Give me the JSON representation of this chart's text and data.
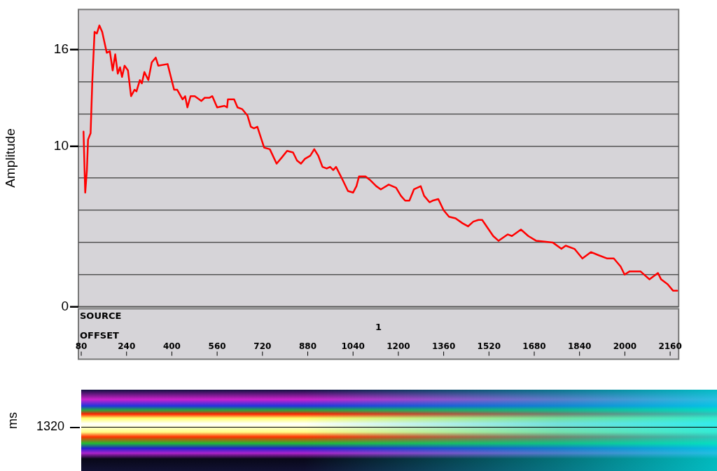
{
  "chart_data": {
    "type": "line",
    "ylabel": "Amplitude",
    "xlabel": "OFFSET",
    "annotations": [
      "SOURCE",
      "1",
      "ms",
      "1320"
    ],
    "xlim": [
      70,
      2190
    ],
    "xticks": [
      80,
      240,
      400,
      560,
      720,
      880,
      1040,
      1200,
      1360,
      1520,
      1680,
      1840,
      2000,
      2160
    ],
    "ylim": [
      0,
      18.5
    ],
    "yticks": [
      0,
      {
        "value": 2,
        "label": null
      },
      {
        "value": 4,
        "label": null
      },
      {
        "value": 6,
        "label": null
      },
      {
        "value": 8,
        "label": null
      },
      10,
      {
        "value": 12,
        "label": null
      },
      {
        "value": 14,
        "label": null
      },
      16
    ],
    "grid": "y",
    "legend": false,
    "marker": "none",
    "line_style": "solid",
    "series": [
      {
        "color": "#ff0000",
        "x": [
          88,
          94,
          100,
          104,
          113,
          119,
          127,
          135,
          144,
          154,
          170,
          181,
          191,
          200,
          209,
          217,
          224,
          233,
          245,
          256,
          268,
          275,
          287,
          294,
          303,
          317,
          329,
          343,
          352,
          385,
          408,
          419,
          438,
          447,
          455,
          466,
          481,
          504,
          516,
          532,
          543,
          560,
          586,
          595,
          598,
          620,
          632,
          648,
          667,
          679,
          690,
          702,
          726,
          746,
          770,
          789,
          807,
          828,
          842,
          856,
          870,
          889,
          903,
          917,
          932,
          947,
          959,
          970,
          980,
          1003,
          1022,
          1040,
          1052,
          1061,
          1084,
          1099,
          1122,
          1138,
          1166,
          1192,
          1209,
          1224,
          1239,
          1255,
          1279,
          1291,
          1310,
          1321,
          1341,
          1360,
          1379,
          1402,
          1426,
          1446,
          1465,
          1483,
          1496,
          1535,
          1554,
          1586,
          1601,
          1633,
          1659,
          1687,
          1745,
          1776,
          1791,
          1822,
          1850,
          1880,
          1908,
          1938,
          1961,
          1985,
          1999,
          2017,
          2055,
          2087,
          2117,
          2128,
          2151,
          2170,
          2185
        ],
        "values": [
          10.9,
          7.1,
          8.5,
          10.4,
          10.8,
          14.0,
          17.1,
          17.0,
          17.5,
          17.1,
          15.8,
          15.9,
          14.7,
          15.7,
          14.5,
          14.9,
          14.3,
          15.0,
          14.7,
          13.1,
          13.5,
          13.4,
          14.1,
          13.9,
          14.6,
          14.1,
          15.2,
          15.5,
          15.0,
          15.1,
          13.5,
          13.5,
          12.9,
          13.1,
          12.4,
          13.1,
          13.1,
          12.8,
          13.0,
          13.0,
          13.1,
          12.4,
          12.5,
          12.4,
          12.9,
          12.9,
          12.4,
          12.3,
          11.9,
          11.2,
          11.1,
          11.2,
          9.9,
          9.8,
          8.9,
          9.3,
          9.7,
          9.6,
          9.1,
          8.9,
          9.2,
          9.4,
          9.8,
          9.4,
          8.7,
          8.6,
          8.7,
          8.5,
          8.7,
          7.9,
          7.2,
          7.1,
          7.5,
          8.1,
          8.1,
          7.9,
          7.5,
          7.3,
          7.6,
          7.4,
          6.9,
          6.6,
          6.6,
          7.3,
          7.5,
          6.9,
          6.5,
          6.6,
          6.7,
          6.0,
          5.6,
          5.5,
          5.2,
          5.0,
          5.3,
          5.4,
          5.4,
          4.4,
          4.1,
          4.5,
          4.4,
          4.8,
          4.4,
          4.1,
          4.0,
          3.6,
          3.8,
          3.6,
          3.0,
          3.4,
          3.2,
          3.0,
          3.0,
          2.5,
          2.0,
          2.2,
          2.2,
          1.7,
          2.1,
          1.7,
          1.4,
          1.0,
          1.0
        ]
      }
    ]
  }
}
